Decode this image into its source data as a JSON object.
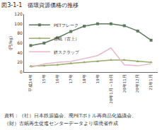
{
  "chart_data": {
    "type": "line",
    "title": "図3-1-1　循環資源価格の推移",
    "y_label": "(円/kg)",
    "categories": [
      "平成14年",
      "15年",
      "16年",
      "17年",
      "18年",
      "19年",
      "20年1月～10月",
      "20年11月",
      "20年12月",
      "21年1月"
    ],
    "series": [
      {
        "name": "PETフレーク",
        "color": "#5b7b5b",
        "marker": "square",
        "values": [
          55,
          60,
          71,
          84,
          95,
          100,
          100,
          96,
          85,
          66
        ]
      },
      {
        "name": "古紙（古上）",
        "color": "#9aaa6a",
        "marker": "triangle",
        "values": [
          12,
          13,
          15,
          18,
          20,
          22,
          25,
          25,
          22,
          20
        ]
      },
      {
        "name": "鉄スクラップ",
        "color": "#e8b8c4",
        "marker": "none",
        "values": [
          10,
          17,
          20,
          22,
          28,
          34,
          50,
          15,
          13,
          17
        ]
      }
    ],
    "ylim": [
      0,
      120
    ],
    "yticks": [
      0,
      20,
      40,
      60,
      80,
      100,
      120
    ],
    "grid": false,
    "legend": "upper left",
    "annotations": [
      "資料：（社）日本鉄源協会、廃PETボトル再商品化協議会、",
      "（財）古紙再生促進センターデータより環境省作成"
    ]
  }
}
